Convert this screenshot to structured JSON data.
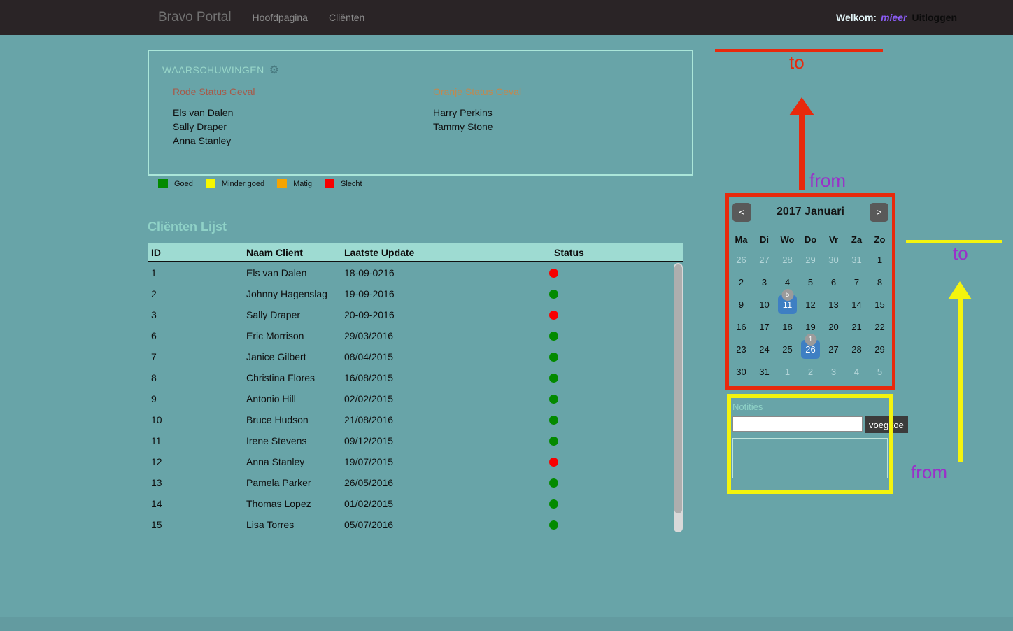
{
  "navbar": {
    "brand": "Bravo Portal",
    "links": [
      "Hoofdpagina",
      "Cliënten"
    ],
    "welcome_label": "Welkom:",
    "username": "mieer",
    "logout": "Uitloggen"
  },
  "icons": {
    "settings_gear": "⚙"
  },
  "warnings": {
    "title": "WAARSCHUWINGEN",
    "red_group": {
      "title": "Rode Status Geval",
      "names": [
        "Els van Dalen",
        "Sally Draper",
        "Anna Stanley"
      ]
    },
    "orange_group": {
      "title": "Oranje Status Geval",
      "names": [
        "Harry Perkins",
        "Tammy Stone"
      ]
    }
  },
  "legend": {
    "items": [
      {
        "label": "Goed",
        "color": "#038a00"
      },
      {
        "label": "Minder goed",
        "color": "#f7f700"
      },
      {
        "label": "Matig",
        "color": "#f7a400"
      },
      {
        "label": "Slecht",
        "color": "#f80000"
      }
    ]
  },
  "clients": {
    "title": "Cliënten Lijst",
    "columns": [
      "ID",
      "Naam Client",
      "Laatste Update",
      "Status"
    ],
    "rows": [
      {
        "id": "1",
        "name": "Els van Dalen",
        "updated": "18-09-0216",
        "status": "red",
        "status_color": "#f80000"
      },
      {
        "id": "2",
        "name": "Johnny Hagenslag",
        "updated": "19-09-2016",
        "status": "green",
        "status_color": "#038a00"
      },
      {
        "id": "3",
        "name": "Sally Draper",
        "updated": "20-09-2016",
        "status": "red",
        "status_color": "#f80000"
      },
      {
        "id": "6",
        "name": "Eric Morrison",
        "updated": "29/03/2016",
        "status": "green",
        "status_color": "#038a00"
      },
      {
        "id": "7",
        "name": "Janice Gilbert",
        "updated": "08/04/2015",
        "status": "green",
        "status_color": "#038a00"
      },
      {
        "id": "8",
        "name": "Christina Flores",
        "updated": "16/08/2015",
        "status": "green",
        "status_color": "#038a00"
      },
      {
        "id": "9",
        "name": "Antonio Hill",
        "updated": "02/02/2015",
        "status": "green",
        "status_color": "#038a00"
      },
      {
        "id": "10",
        "name": "Bruce Hudson",
        "updated": "21/08/2016",
        "status": "green",
        "status_color": "#038a00"
      },
      {
        "id": "11",
        "name": "Irene Stevens",
        "updated": "09/12/2015",
        "status": "green",
        "status_color": "#038a00"
      },
      {
        "id": "12",
        "name": "Anna Stanley",
        "updated": "19/07/2015",
        "status": "red",
        "status_color": "#f80000"
      },
      {
        "id": "13",
        "name": "Pamela Parker",
        "updated": "26/05/2016",
        "status": "green",
        "status_color": "#038a00"
      },
      {
        "id": "14",
        "name": "Thomas Lopez",
        "updated": "01/02/2015",
        "status": "green",
        "status_color": "#038a00"
      },
      {
        "id": "15",
        "name": "Lisa Torres",
        "updated": "05/07/2016",
        "status": "green",
        "status_color": "#038a00"
      }
    ]
  },
  "calendar": {
    "title": "2017 Januari",
    "prev": "<",
    "next": ">",
    "day_headers": [
      "Ma",
      "Di",
      "Wo",
      "Do",
      "Vr",
      "Za",
      "Zo"
    ],
    "weeks": [
      [
        "26",
        "27",
        "28",
        "29",
        "30",
        "31",
        "1"
      ],
      [
        "2",
        "3",
        "4",
        "5",
        "6",
        "7",
        "8"
      ],
      [
        "9",
        "10",
        "11",
        "12",
        "13",
        "14",
        "15"
      ],
      [
        "16",
        "17",
        "18",
        "19",
        "20",
        "21",
        "22"
      ],
      [
        "23",
        "24",
        "25",
        "26",
        "27",
        "28",
        "29"
      ],
      [
        "30",
        "31",
        "1",
        "2",
        "3",
        "4",
        "5"
      ]
    ],
    "badges": {
      "day11": "5",
      "day26": "1"
    },
    "selected_color": "#3e7fc3",
    "badge_color": "#9b9b9b"
  },
  "notes": {
    "title": "Notities",
    "input_value": "",
    "add_button": "voeg toe"
  },
  "annotations": {
    "to_top": "to",
    "from_calendar": "from",
    "to_right": "to",
    "from_notes": "from",
    "red": "#e8290c",
    "yellow": "#f4f40e",
    "purple": "#9a30c9"
  }
}
